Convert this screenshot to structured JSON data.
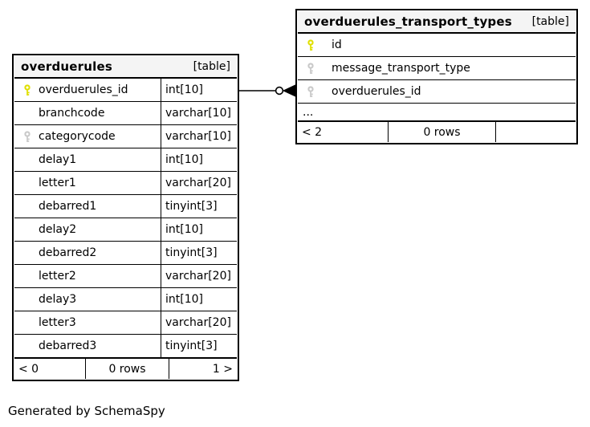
{
  "note": "Generated by SchemaSpy",
  "colors": {
    "border": "#000000",
    "header_bg": "#f4f4f4",
    "row_bg": "#ffffff",
    "pk_key": "#e0e000",
    "fk_key": "#c9c9c9"
  },
  "left_table": {
    "title": "overduerules",
    "tag": "[table]",
    "columns": [
      {
        "key": "pk",
        "name": "overduerules_id",
        "type": "int[10]"
      },
      {
        "key": null,
        "name": "branchcode",
        "type": "varchar[10]"
      },
      {
        "key": "fk",
        "name": "categorycode",
        "type": "varchar[10]"
      },
      {
        "key": null,
        "name": "delay1",
        "type": "int[10]"
      },
      {
        "key": null,
        "name": "letter1",
        "type": "varchar[20]"
      },
      {
        "key": null,
        "name": "debarred1",
        "type": "tinyint[3]"
      },
      {
        "key": null,
        "name": "delay2",
        "type": "int[10]"
      },
      {
        "key": null,
        "name": "debarred2",
        "type": "tinyint[3]"
      },
      {
        "key": null,
        "name": "letter2",
        "type": "varchar[20]"
      },
      {
        "key": null,
        "name": "delay3",
        "type": "int[10]"
      },
      {
        "key": null,
        "name": "letter3",
        "type": "varchar[20]"
      },
      {
        "key": null,
        "name": "debarred3",
        "type": "tinyint[3]"
      }
    ],
    "footer": {
      "prev": "< 0",
      "count": "0 rows",
      "next": "1 >"
    }
  },
  "right_table": {
    "title": "overduerules_transport_types",
    "tag": "[table]",
    "columns": [
      {
        "key": "pk",
        "name": "id"
      },
      {
        "key": "fk",
        "name": "message_transport_type"
      },
      {
        "key": "fk",
        "name": "overduerules_id"
      }
    ],
    "ellipsis": "...",
    "footer": {
      "prev": "< 2",
      "count": "0 rows",
      "next": ""
    }
  },
  "relationship": {
    "from_table": "overduerules",
    "from_column": "overduerules_id",
    "to_table": "overduerules_transport_types",
    "to_column": "overduerules_id"
  }
}
